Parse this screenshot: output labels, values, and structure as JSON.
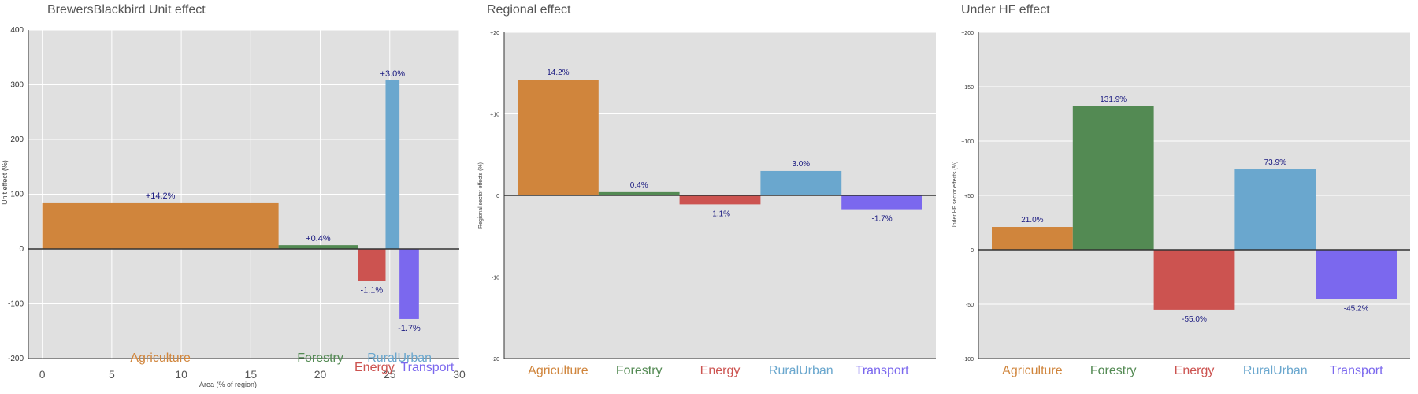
{
  "colors": {
    "Agriculture": "#D0853C",
    "Forestry": "#538A53",
    "Energy": "#CC5350",
    "RuralUrban": "#6AA7CE",
    "Transport": "#7B68EE",
    "panel_bg": "#E0E0E0",
    "grid": "#FFFFFF",
    "label_text": "#1A1A80"
  },
  "chart_data": [
    {
      "type": "bar",
      "title": "BrewersBlackbird Unit effect",
      "xlabel": "Area (% of region)",
      "ylabel": "Unit effect (%)",
      "xlim": [
        -1,
        30
      ],
      "ylim": [
        -200,
        400
      ],
      "xticks": [
        0,
        5,
        10,
        15,
        20,
        25,
        30
      ],
      "yticks": [
        -200,
        -100,
        0,
        100,
        200,
        300,
        400
      ],
      "ytick_labels": [
        "-200",
        "-100",
        "0",
        "100",
        "200",
        "300",
        "400"
      ],
      "grid": true,
      "categories": [
        "Agriculture",
        "Forestry",
        "Energy",
        "RuralUrban",
        "Transport"
      ],
      "bars": [
        {
          "category": "Agriculture",
          "x0": 0,
          "x1": 17.0,
          "value": 85,
          "label": "+14.2%"
        },
        {
          "category": "Forestry",
          "x0": 17.0,
          "x1": 22.7,
          "value": 7,
          "label": "+0.4%"
        },
        {
          "category": "Energy",
          "x0": 22.7,
          "x1": 24.7,
          "value": -58,
          "label": "-1.1%"
        },
        {
          "category": "RuralUrban",
          "x0": 24.7,
          "x1": 25.7,
          "value": 308,
          "label": "+3.0%"
        },
        {
          "category": "Transport",
          "x0": 25.7,
          "x1": 27.1,
          "value": -128,
          "label": "-1.7%"
        }
      ]
    },
    {
      "type": "bar",
      "title": "Regional effect",
      "xlabel": "",
      "ylabel": "Regional sector effects (%)",
      "ylim": [
        -20,
        20
      ],
      "yticks": [
        -20,
        -10,
        0,
        10,
        20
      ],
      "ytick_labels": [
        "-20",
        "-10",
        "0",
        "+10",
        "+20"
      ],
      "grid": true,
      "categories": [
        "Agriculture",
        "Forestry",
        "Energy",
        "RuralUrban",
        "Transport"
      ],
      "values": [
        14.2,
        0.4,
        -1.1,
        3.0,
        -1.7
      ],
      "labels": [
        "14.2%",
        "0.4%",
        "-1.1%",
        "3.0%",
        "-1.7%"
      ]
    },
    {
      "type": "bar",
      "title": "Under HF effect",
      "xlabel": "",
      "ylabel": "Under HF sector effects (%)",
      "ylim": [
        -100,
        200
      ],
      "yticks": [
        -100,
        -50,
        0,
        50,
        100,
        150,
        200
      ],
      "ytick_labels": [
        "-100",
        "-50",
        "0",
        "+50",
        "+100",
        "+150",
        "+200"
      ],
      "grid": true,
      "categories": [
        "Agriculture",
        "Forestry",
        "Energy",
        "RuralUrban",
        "Transport"
      ],
      "values": [
        21.0,
        131.9,
        -55.0,
        73.9,
        -45.2
      ],
      "labels": [
        "21.0%",
        "131.9%",
        "-55.0%",
        "73.9%",
        "-45.2%"
      ]
    }
  ]
}
